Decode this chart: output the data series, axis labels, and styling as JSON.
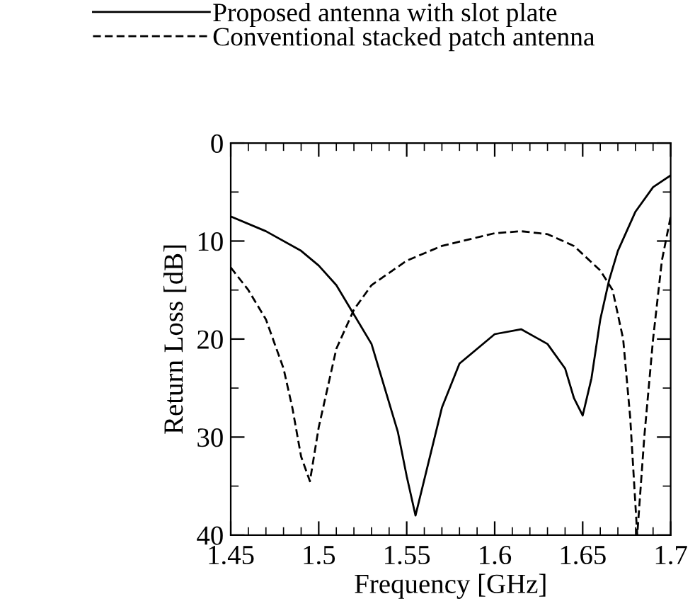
{
  "chart_data": {
    "type": "line",
    "xlabel": "Frequency [GHz]",
    "ylabel": "Return Loss [dB]",
    "xlim": [
      1.45,
      1.7
    ],
    "xticks": [
      1.45,
      1.5,
      1.55,
      1.6,
      1.65,
      1.7
    ],
    "ylim": [
      40,
      0
    ],
    "yticks": [
      0,
      10,
      20,
      30,
      40
    ],
    "grid": false,
    "legend": "top",
    "series": [
      {
        "name": "Proposed antenna with slot plate",
        "color": "#000000",
        "line_style": "solid",
        "x": [
          1.45,
          1.47,
          1.49,
          1.5,
          1.51,
          1.52,
          1.53,
          1.545,
          1.55,
          1.555,
          1.57,
          1.58,
          1.6,
          1.615,
          1.63,
          1.64,
          1.645,
          1.65,
          1.655,
          1.66,
          1.665,
          1.67,
          1.68,
          1.69,
          1.7
        ],
        "values": [
          7.5,
          9,
          11,
          12.5,
          14.5,
          17.5,
          20.5,
          29.5,
          34,
          38,
          27,
          22.5,
          19.5,
          19,
          20.5,
          23,
          26,
          27.8,
          24,
          18,
          14,
          11,
          7,
          4.5,
          3.3
        ]
      },
      {
        "name": "Conventional stacked patch antenna",
        "color": "#000000",
        "line_style": "dashed",
        "x": [
          1.45,
          1.46,
          1.47,
          1.48,
          1.485,
          1.49,
          1.495,
          1.5,
          1.51,
          1.52,
          1.53,
          1.55,
          1.57,
          1.6,
          1.615,
          1.63,
          1.645,
          1.66,
          1.667,
          1.673,
          1.677,
          1.681,
          1.685,
          1.69,
          1.695,
          1.7
        ],
        "values": [
          12.7,
          15,
          18,
          23,
          27,
          32,
          34.5,
          29,
          21,
          17,
          14.5,
          12,
          10.5,
          9.2,
          9,
          9.3,
          10.5,
          13,
          15,
          20,
          28,
          40,
          30,
          20,
          12,
          7.5
        ]
      }
    ]
  }
}
